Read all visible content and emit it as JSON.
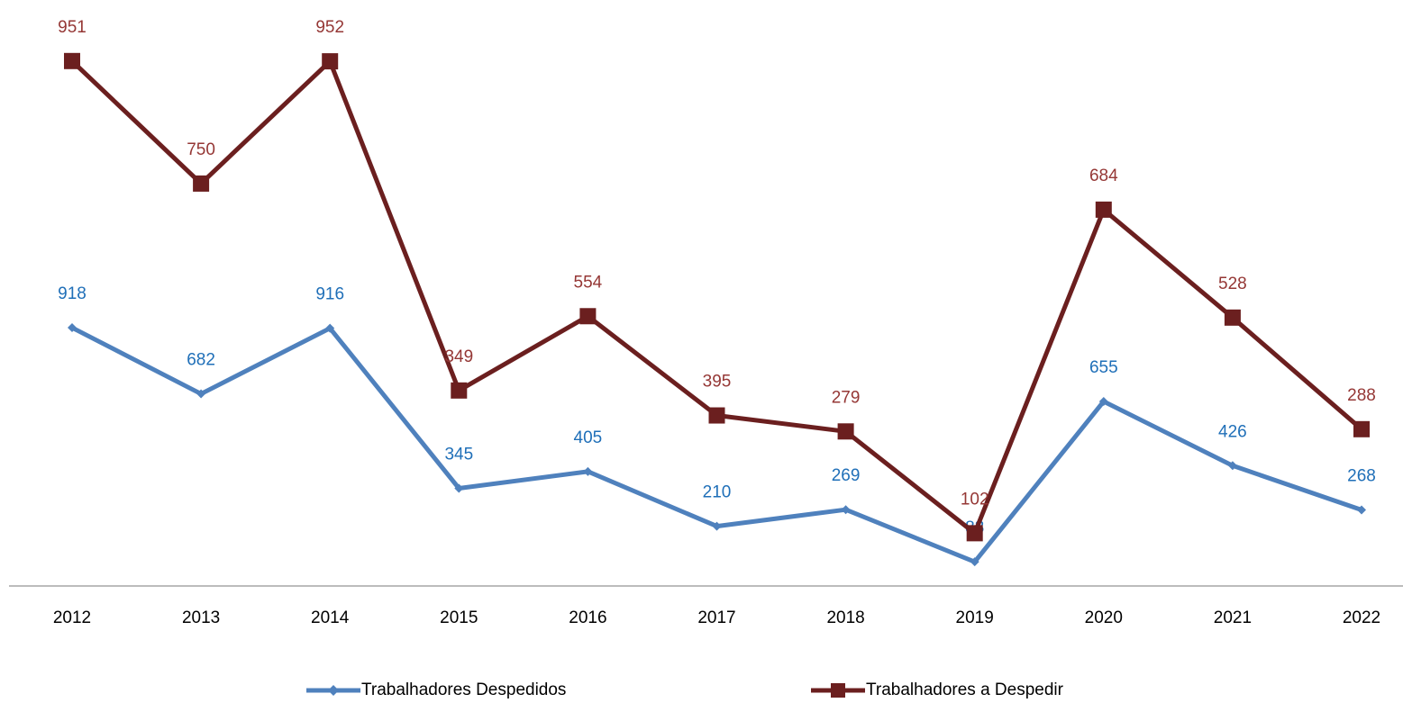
{
  "chart_data": {
    "type": "line",
    "stacked": true,
    "categories": [
      "2012",
      "2013",
      "2014",
      "2015",
      "2016",
      "2017",
      "2018",
      "2019",
      "2020",
      "2021",
      "2022"
    ],
    "series": [
      {
        "name": "Trabalhadores Despedidos",
        "color": "#4f81bd",
        "label_color": "#1f6fb8",
        "marker": "diamond",
        "values": [
          918,
          682,
          916,
          345,
          405,
          210,
          269,
          83,
          655,
          426,
          268
        ]
      },
      {
        "name": "Trabalhadores a Despedir",
        "color": "#6b1f1f",
        "label_color": "#953735",
        "marker": "square",
        "values": [
          951,
          750,
          952,
          349,
          554,
          395,
          279,
          102,
          684,
          528,
          288
        ]
      }
    ],
    "ylim": [
      0,
      2000
    ],
    "legend": "bottom"
  }
}
